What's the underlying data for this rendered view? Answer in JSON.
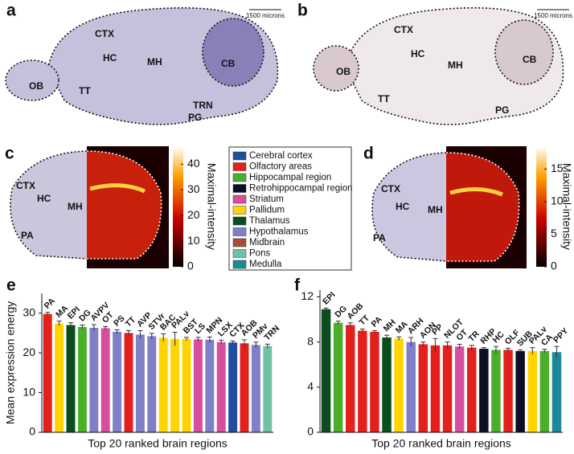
{
  "panels": {
    "a": {
      "label": "a",
      "scale_bar": "1500 microns",
      "regions": [
        "CTX",
        "HC",
        "MH",
        "CB",
        "OB",
        "TT",
        "TRN",
        "PG"
      ]
    },
    "b": {
      "label": "b",
      "scale_bar": "1500 microns",
      "regions": [
        "CTX",
        "HC",
        "MH",
        "CB",
        "OB",
        "TT",
        "PG"
      ]
    },
    "c": {
      "label": "c",
      "regions": [
        "CTX",
        "HC",
        "MH",
        "PA"
      ],
      "colorbar": {
        "label": "Maximal-intensity",
        "lim": [
          0,
          47
        ],
        "ticks": [
          0,
          10,
          20,
          30,
          40
        ]
      }
    },
    "d": {
      "label": "d",
      "regions": [
        "CTX",
        "HC",
        "MH",
        "PA"
      ],
      "colorbar": {
        "label": "Maximal-intensity",
        "lim": [
          0,
          18.5
        ],
        "ticks": [
          0,
          5,
          10,
          15
        ]
      }
    }
  },
  "legend": [
    {
      "name": "Cerebral cortex",
      "color": "#1f4e9e"
    },
    {
      "name": "Olfactory areas",
      "color": "#e3201c"
    },
    {
      "name": "Hippocampal region",
      "color": "#4caf2a"
    },
    {
      "name": "Retrohippocampal region",
      "color": "#0d0d26"
    },
    {
      "name": "Striatum",
      "color": "#d64f9e"
    },
    {
      "name": "Pallidum",
      "color": "#ffd400"
    },
    {
      "name": "Thalamus",
      "color": "#0b4d1e"
    },
    {
      "name": "Hypothalamus",
      "color": "#8080c8"
    },
    {
      "name": "Midbrain",
      "color": "#a0503c"
    },
    {
      "name": "Pons",
      "color": "#6fc2a8"
    },
    {
      "name": "Medulla",
      "color": "#1a8a9a"
    }
  ],
  "chart_data": [
    {
      "type": "bar",
      "panel": "e",
      "y_label": "Mean expression energy",
      "x_label": "Top 20 ranked brain regions",
      "categories": [
        "PA",
        "MA",
        "EPI",
        "DG",
        "AVPV",
        "OT",
        "PS",
        "TT",
        "AVP",
        "STVr",
        "BAC",
        "PALv",
        "BST",
        "LS",
        "MPN",
        "LSX",
        "CTX",
        "AOB",
        "PMv",
        "TRN"
      ],
      "values": [
        29.8,
        27.4,
        27.0,
        26.5,
        26.3,
        26.2,
        25.3,
        25.0,
        24.6,
        24.2,
        23.8,
        23.5,
        23.5,
        23.4,
        23.3,
        22.7,
        22.6,
        22.4,
        22.0,
        21.7
      ],
      "errors": [
        0.4,
        0.6,
        0.6,
        0.5,
        0.8,
        0.4,
        0.5,
        0.6,
        1.0,
        0.7,
        1.0,
        1.7,
        0.4,
        0.5,
        0.7,
        0.5,
        0.4,
        0.9,
        0.7,
        0.5
      ],
      "colors": [
        "#e3201c",
        "#ffd400",
        "#0b4d1e",
        "#4caf2a",
        "#8080c8",
        "#d64f9e",
        "#8080c8",
        "#e3201c",
        "#8080c8",
        "#8080c8",
        "#ffd400",
        "#ffd400",
        "#ffd400",
        "#d64f9e",
        "#8080c8",
        "#d64f9e",
        "#1f4e9e",
        "#e3201c",
        "#8080c8",
        "#6fc2a8"
      ],
      "ylim": [
        0,
        35
      ],
      "yticks": [
        0,
        10,
        20,
        30
      ]
    },
    {
      "type": "bar",
      "panel": "f",
      "x_label": "Top 20 ranked brain regions",
      "categories": [
        "EPI",
        "DG",
        "AOB",
        "TT",
        "PA",
        "MH",
        "MA",
        "ARH",
        "AON",
        "PP",
        "NLOT",
        "OT",
        "TR",
        "RHP",
        "HC",
        "OLF",
        "SUB",
        "PALv",
        "CA",
        "PPY"
      ],
      "values": [
        10.9,
        9.7,
        9.5,
        9.0,
        8.9,
        8.4,
        8.3,
        8.0,
        7.8,
        7.7,
        7.7,
        7.6,
        7.5,
        7.4,
        7.3,
        7.3,
        7.2,
        7.2,
        7.2,
        7.1
      ],
      "errors": [
        0.1,
        0.15,
        0.2,
        0.15,
        0.1,
        0.2,
        0.15,
        0.4,
        0.2,
        0.6,
        0.3,
        0.2,
        0.2,
        0.1,
        0.3,
        0.15,
        0.1,
        0.3,
        0.15,
        0.5
      ],
      "colors": [
        "#0b4d1e",
        "#4caf2a",
        "#e3201c",
        "#e3201c",
        "#e3201c",
        "#0b4d1e",
        "#ffd400",
        "#8080c8",
        "#e3201c",
        "#e3201c",
        "#e3201c",
        "#d64f9e",
        "#e3201c",
        "#0d0d26",
        "#4caf2a",
        "#e3201c",
        "#0d0d26",
        "#ffd400",
        "#4caf2a",
        "#1a8a9a"
      ],
      "ylim": [
        0,
        12.6
      ],
      "yticks": [
        0,
        4,
        8,
        12
      ]
    }
  ]
}
